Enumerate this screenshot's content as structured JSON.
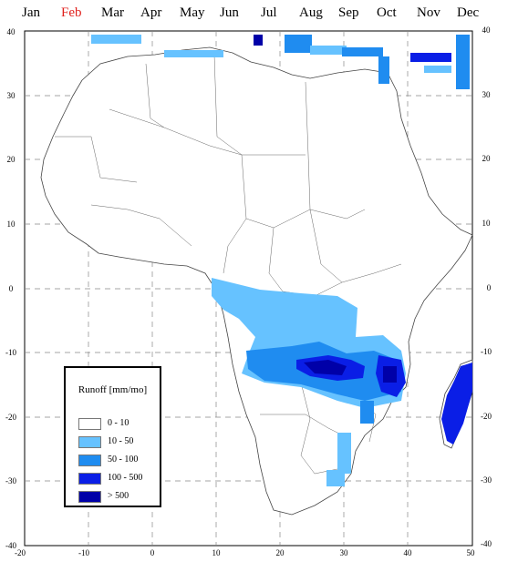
{
  "months": [
    "Jan",
    "Feb",
    "Mar",
    "Apr",
    "May",
    "Jun",
    "Jul",
    "Aug",
    "Sep",
    "Oct",
    "Nov",
    "Dec"
  ],
  "selected_month": "Feb",
  "colors": {
    "active_month": "#e0201c",
    "land_outline": "#555555",
    "gridline": "#888888"
  },
  "axes": {
    "x_ticks": [
      "-20",
      "-10",
      "0",
      "10",
      "20",
      "30",
      "40",
      "50"
    ],
    "y_ticks": [
      "40",
      "30",
      "20",
      "10",
      "0",
      "-10",
      "-20",
      "-30",
      "-40"
    ],
    "right_y_ticks": [
      "40",
      "30",
      "20",
      "10",
      "0",
      "-10",
      "-20",
      "-30",
      "-40"
    ]
  },
  "legend": {
    "title": "Runoff [mm/mo]",
    "items": [
      {
        "label": "0  -  10",
        "color": "#ffffff"
      },
      {
        "label": "10  -  50",
        "color": "#66c2ff"
      },
      {
        "label": "50  -  100",
        "color": "#1f8cf0"
      },
      {
        "label": "100  -  500",
        "color": "#0a1ee6"
      },
      {
        "label": ">  500",
        "color": "#0000a8"
      }
    ]
  }
}
